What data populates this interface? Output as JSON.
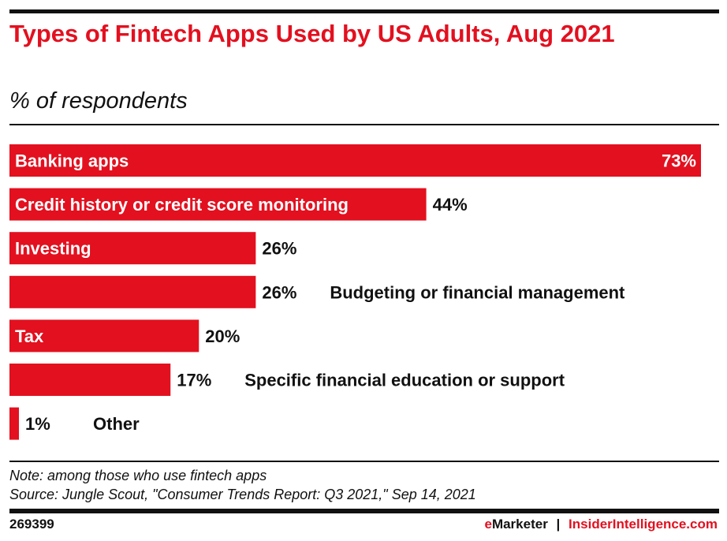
{
  "chart_data": {
    "type": "bar",
    "orientation": "horizontal",
    "title": "Types of Fintech Apps Used by US Adults, Aug 2021",
    "subtitle": "% of respondents",
    "categories": [
      "Banking apps",
      "Credit history or credit score monitoring",
      "Investing",
      "Budgeting or financial management",
      "Tax",
      "Specific financial education or support",
      "Other"
    ],
    "values": [
      73,
      44,
      26,
      26,
      20,
      17,
      1
    ],
    "value_labels": [
      "73%",
      "44%",
      "26%",
      "26%",
      "20%",
      "17%",
      "1%"
    ],
    "label_inside": [
      true,
      true,
      true,
      false,
      true,
      false,
      false
    ],
    "xlim": [
      0,
      73
    ],
    "bar_color": "#e3101f",
    "grid": false
  },
  "note": "Note: among those who use fintech apps",
  "source": "Source: Jungle Scout, \"Consumer Trends Report: Q3 2021,\" Sep 14, 2021",
  "footer": {
    "id": "269399",
    "brand_e": "e",
    "brand_rest": "Marketer",
    "separator": "|",
    "site": "InsiderIntelligence.com"
  }
}
